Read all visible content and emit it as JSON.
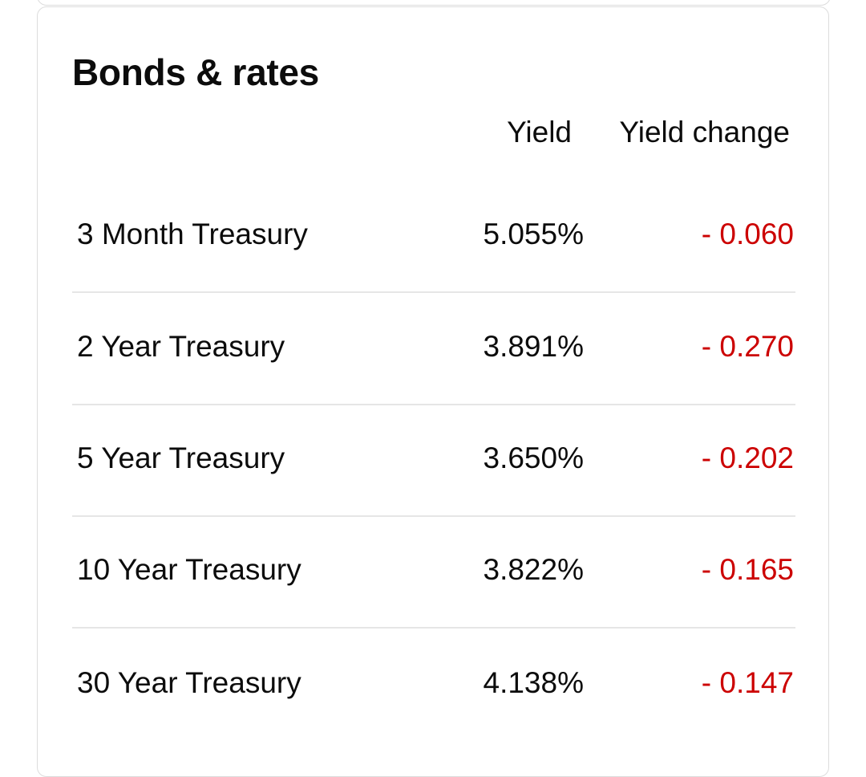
{
  "card": {
    "title": "Bonds & rates",
    "table": {
      "headers": [
        "Yield",
        "Yield change"
      ],
      "rows": [
        [
          "3 Month Treasury",
          "5.055%",
          "- 0.060"
        ],
        [
          "2 Year Treasury",
          "3.891%",
          "- 0.270"
        ],
        [
          "5 Year Treasury",
          "3.650%",
          "- 0.202"
        ],
        [
          "10 Year Treasury",
          "3.822%",
          "- 0.165"
        ],
        [
          "30 Year Treasury",
          "4.138%",
          "- 0.147"
        ]
      ]
    }
  }
}
